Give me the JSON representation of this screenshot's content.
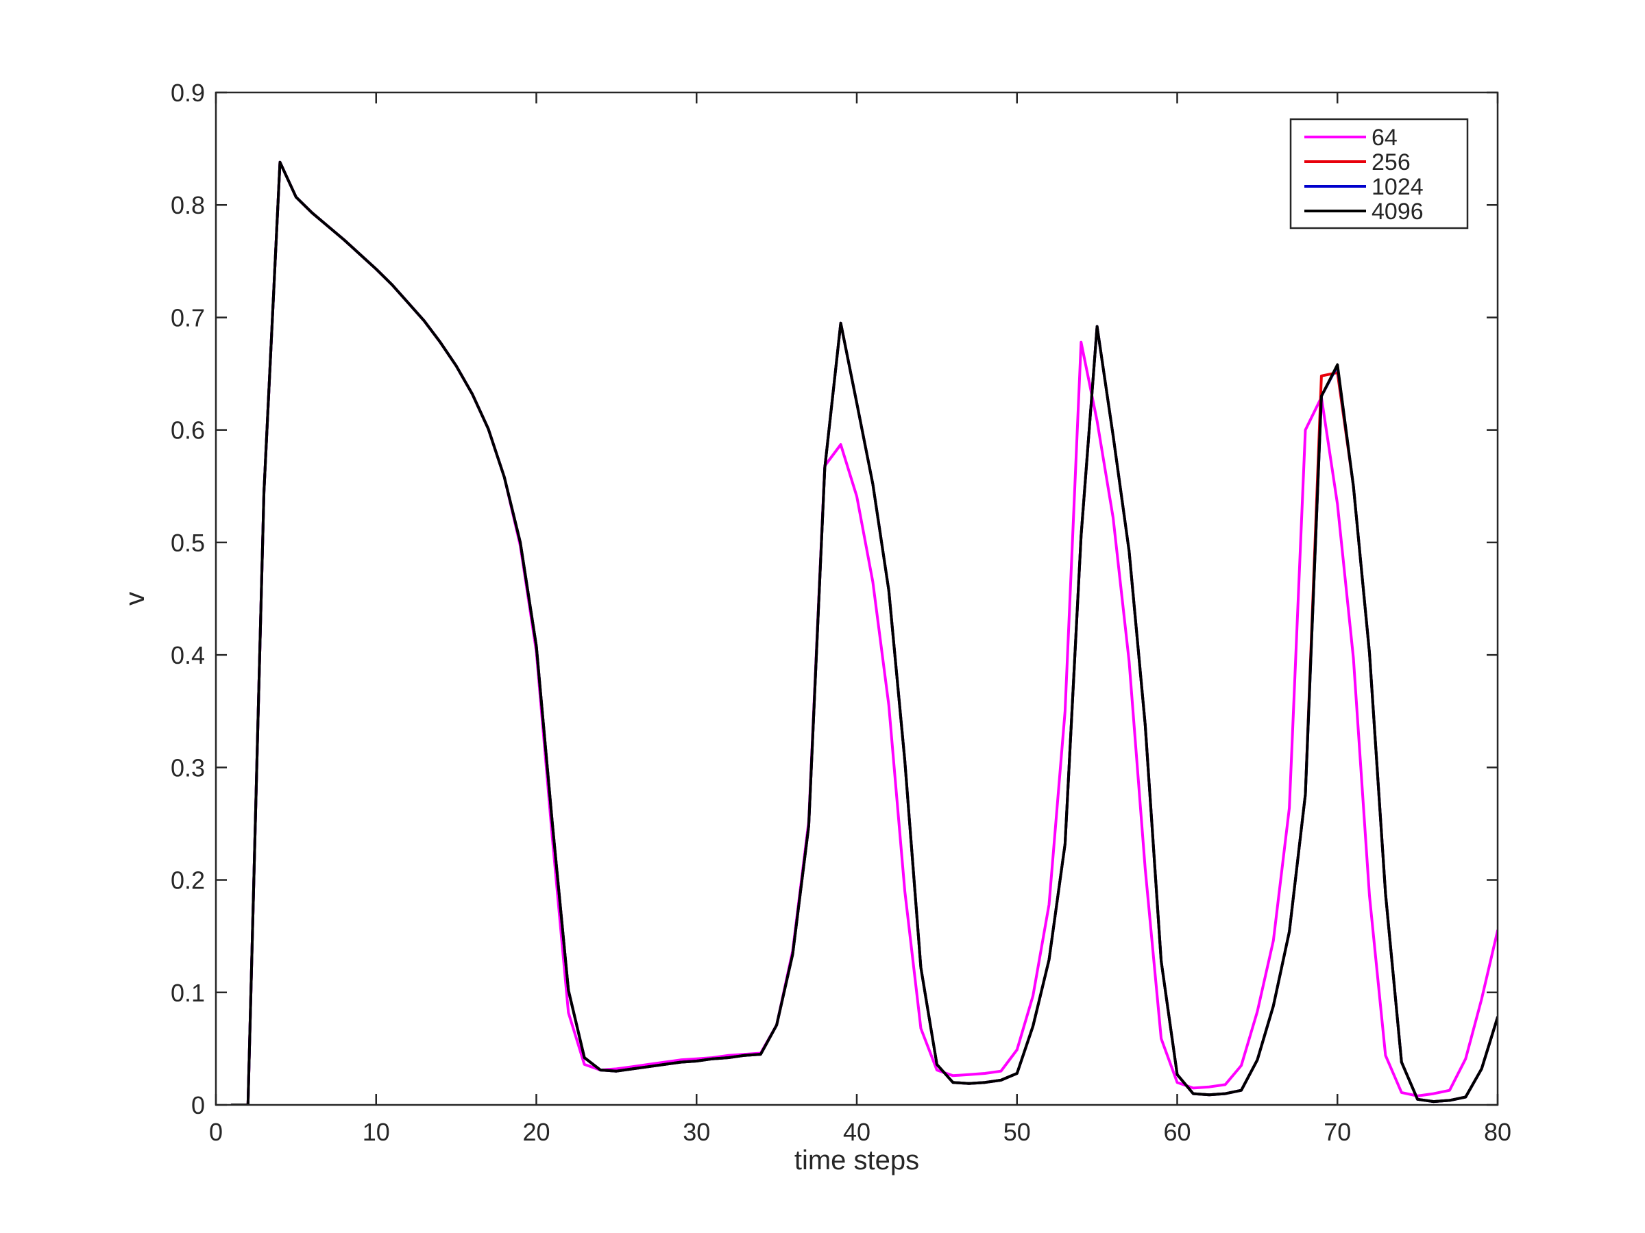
{
  "chart_data": {
    "type": "line",
    "title": "",
    "xlabel": "time steps",
    "ylabel": "v",
    "xlim": [
      0,
      80
    ],
    "ylim": [
      0,
      0.9
    ],
    "xticks": [
      0,
      10,
      20,
      30,
      40,
      50,
      60,
      70,
      80
    ],
    "yticks": [
      0,
      0.1,
      0.2,
      0.3,
      0.4,
      0.5,
      0.6,
      0.7,
      0.8,
      0.9
    ],
    "xtick_labels": [
      "0",
      "10",
      "20",
      "30",
      "40",
      "50",
      "60",
      "70",
      "80"
    ],
    "ytick_labels": [
      "0",
      "0.1",
      "0.2",
      "0.3",
      "0.4",
      "0.5",
      "0.6",
      "0.7",
      "0.8",
      "0.9"
    ],
    "grid": false,
    "legend_position": "top-right",
    "series": [
      {
        "name": "64",
        "color": "#ff00ff",
        "x": [
          1,
          2,
          3,
          4,
          5,
          6,
          7,
          8,
          9,
          10,
          11,
          12,
          13,
          14,
          15,
          16,
          17,
          18,
          19,
          20,
          21,
          22,
          23,
          24,
          25,
          26,
          27,
          28,
          29,
          30,
          31,
          32,
          33,
          34,
          35,
          36,
          37,
          38,
          39,
          40,
          41,
          42,
          43,
          44,
          45,
          46,
          47,
          48,
          49,
          50,
          51,
          52,
          53,
          54,
          55,
          56,
          57,
          58,
          59,
          60,
          61,
          62,
          63,
          64,
          65,
          66,
          67,
          68,
          69,
          70,
          71,
          72,
          73,
          74,
          75,
          76,
          77,
          78,
          79,
          80
        ],
        "y": [
          0,
          0,
          0.545,
          0.838,
          0.807,
          0.793,
          0.781,
          0.769,
          0.756,
          0.743,
          0.729,
          0.713,
          0.697,
          0.678,
          0.657,
          0.632,
          0.601,
          0.558,
          0.497,
          0.403,
          0.237,
          0.082,
          0.036,
          0.031,
          0.032,
          0.034,
          0.036,
          0.038,
          0.04,
          0.041,
          0.042,
          0.044,
          0.045,
          0.046,
          0.071,
          0.137,
          0.252,
          0.568,
          0.587,
          0.541,
          0.465,
          0.355,
          0.19,
          0.068,
          0.031,
          0.026,
          0.027,
          0.028,
          0.03,
          0.049,
          0.097,
          0.178,
          0.35,
          0.678,
          0.608,
          0.522,
          0.394,
          0.21,
          0.059,
          0.02,
          0.015,
          0.016,
          0.018,
          0.035,
          0.083,
          0.146,
          0.264,
          0.6,
          0.629,
          0.534,
          0.397,
          0.186,
          0.044,
          0.011,
          0.008,
          0.01,
          0.013,
          0.041,
          0.094,
          0.155
        ]
      },
      {
        "name": "256",
        "color": "#e8000b",
        "x": [
          1,
          2,
          3,
          4,
          5,
          6,
          7,
          8,
          9,
          10,
          11,
          12,
          13,
          14,
          15,
          16,
          17,
          18,
          19,
          20,
          21,
          22,
          23,
          24,
          25,
          26,
          27,
          28,
          29,
          30,
          31,
          32,
          33,
          34,
          35,
          36,
          37,
          38,
          39,
          40,
          41,
          42,
          43,
          44,
          45,
          46,
          47,
          48,
          49,
          50,
          51,
          52,
          53,
          54,
          55,
          56,
          57,
          58,
          59,
          60,
          61,
          62,
          63,
          64,
          65,
          66,
          67,
          68,
          69,
          70,
          71,
          72,
          73,
          74,
          75,
          76,
          77,
          78,
          79,
          80
        ],
        "y": [
          0,
          0,
          0.545,
          0.838,
          0.807,
          0.793,
          0.781,
          0.769,
          0.756,
          0.743,
          0.729,
          0.713,
          0.697,
          0.678,
          0.657,
          0.632,
          0.601,
          0.558,
          0.5,
          0.408,
          0.25,
          0.102,
          0.042,
          0.031,
          0.03,
          0.032,
          0.034,
          0.036,
          0.038,
          0.039,
          0.041,
          0.042,
          0.044,
          0.045,
          0.071,
          0.134,
          0.248,
          0.566,
          0.695,
          0.624,
          0.552,
          0.457,
          0.306,
          0.122,
          0.036,
          0.02,
          0.019,
          0.02,
          0.022,
          0.028,
          0.07,
          0.129,
          0.232,
          0.506,
          0.692,
          0.595,
          0.492,
          0.338,
          0.128,
          0.027,
          0.01,
          0.009,
          0.01,
          0.013,
          0.04,
          0.088,
          0.154,
          0.276,
          0.648,
          0.651,
          0.55,
          0.402,
          0.188,
          0.038,
          0.005,
          0.003,
          0.004,
          0.007,
          0.032,
          0.078
        ]
      },
      {
        "name": "1024",
        "color": "#0000cc",
        "x": [
          1,
          2,
          3,
          4,
          5,
          6,
          7,
          8,
          9,
          10,
          11,
          12,
          13,
          14,
          15,
          16,
          17,
          18,
          19,
          20,
          21,
          22,
          23,
          24,
          25,
          26,
          27,
          28,
          29,
          30,
          31,
          32,
          33,
          34,
          35,
          36,
          37,
          38,
          39,
          40,
          41,
          42,
          43,
          44,
          45,
          46,
          47,
          48,
          49,
          50,
          51,
          52,
          53,
          54,
          55,
          56,
          57,
          58,
          59,
          60,
          61,
          62,
          63,
          64,
          65,
          66,
          67,
          68,
          69,
          70,
          71,
          72,
          73,
          74,
          75,
          76,
          77,
          78,
          79,
          80
        ],
        "y": [
          0,
          0,
          0.545,
          0.838,
          0.807,
          0.793,
          0.781,
          0.769,
          0.756,
          0.743,
          0.729,
          0.713,
          0.697,
          0.678,
          0.657,
          0.632,
          0.601,
          0.558,
          0.5,
          0.408,
          0.25,
          0.102,
          0.042,
          0.031,
          0.03,
          0.032,
          0.034,
          0.036,
          0.038,
          0.039,
          0.041,
          0.042,
          0.044,
          0.045,
          0.071,
          0.134,
          0.248,
          0.566,
          0.695,
          0.624,
          0.552,
          0.457,
          0.306,
          0.122,
          0.036,
          0.02,
          0.019,
          0.02,
          0.022,
          0.028,
          0.07,
          0.129,
          0.232,
          0.506,
          0.692,
          0.595,
          0.492,
          0.338,
          0.128,
          0.027,
          0.01,
          0.009,
          0.01,
          0.013,
          0.04,
          0.088,
          0.154,
          0.276,
          0.63,
          0.657,
          0.55,
          0.402,
          0.188,
          0.038,
          0.005,
          0.003,
          0.004,
          0.007,
          0.032,
          0.078
        ]
      },
      {
        "name": "4096",
        "color": "#000000",
        "x": [
          1,
          2,
          3,
          4,
          5,
          6,
          7,
          8,
          9,
          10,
          11,
          12,
          13,
          14,
          15,
          16,
          17,
          18,
          19,
          20,
          21,
          22,
          23,
          24,
          25,
          26,
          27,
          28,
          29,
          30,
          31,
          32,
          33,
          34,
          35,
          36,
          37,
          38,
          39,
          40,
          41,
          42,
          43,
          44,
          45,
          46,
          47,
          48,
          49,
          50,
          51,
          52,
          53,
          54,
          55,
          56,
          57,
          58,
          59,
          60,
          61,
          62,
          63,
          64,
          65,
          66,
          67,
          68,
          69,
          70,
          71,
          72,
          73,
          74,
          75,
          76,
          77,
          78,
          79,
          80
        ],
        "y": [
          0,
          0,
          0.545,
          0.838,
          0.807,
          0.793,
          0.781,
          0.769,
          0.756,
          0.743,
          0.729,
          0.713,
          0.697,
          0.678,
          0.657,
          0.632,
          0.601,
          0.558,
          0.5,
          0.408,
          0.25,
          0.102,
          0.042,
          0.031,
          0.03,
          0.032,
          0.034,
          0.036,
          0.038,
          0.039,
          0.041,
          0.042,
          0.044,
          0.045,
          0.071,
          0.134,
          0.248,
          0.566,
          0.695,
          0.624,
          0.552,
          0.457,
          0.306,
          0.122,
          0.036,
          0.02,
          0.019,
          0.02,
          0.022,
          0.028,
          0.07,
          0.129,
          0.232,
          0.506,
          0.692,
          0.595,
          0.492,
          0.338,
          0.128,
          0.027,
          0.01,
          0.009,
          0.01,
          0.013,
          0.04,
          0.088,
          0.154,
          0.276,
          0.63,
          0.658,
          0.55,
          0.402,
          0.188,
          0.038,
          0.005,
          0.003,
          0.004,
          0.007,
          0.032,
          0.078
        ]
      }
    ]
  }
}
